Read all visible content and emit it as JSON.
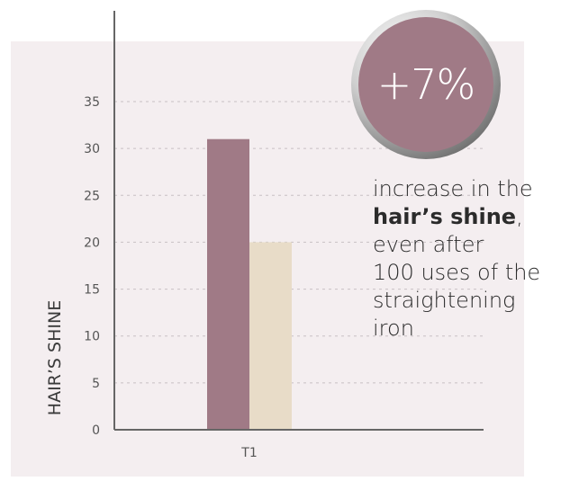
{
  "chart_data": {
    "type": "bar",
    "categories": [
      "T1"
    ],
    "series": [
      {
        "values": [
          31
        ]
      },
      {
        "values": [
          20
        ]
      }
    ],
    "ylabel": "HAIR’S SHINE",
    "ylim": [
      0,
      35
    ],
    "yticks": [
      0,
      5,
      10,
      15,
      20,
      25,
      30,
      35
    ],
    "grid": true,
    "colors": {
      "series1": "#a07a86",
      "series2": "#e8dcc8",
      "plot_bg": "#f4eef0",
      "axis": "#666666",
      "grid": "#c8c0c4"
    }
  },
  "callout": {
    "value": "+7%",
    "line1": "increase in the",
    "bold_text": "hair’s shine",
    "after_bold": ",",
    "line3": "even after",
    "line4": "100 uses of the",
    "line5": "straightening",
    "line6": "iron",
    "badge_color": "#a07a86"
  }
}
